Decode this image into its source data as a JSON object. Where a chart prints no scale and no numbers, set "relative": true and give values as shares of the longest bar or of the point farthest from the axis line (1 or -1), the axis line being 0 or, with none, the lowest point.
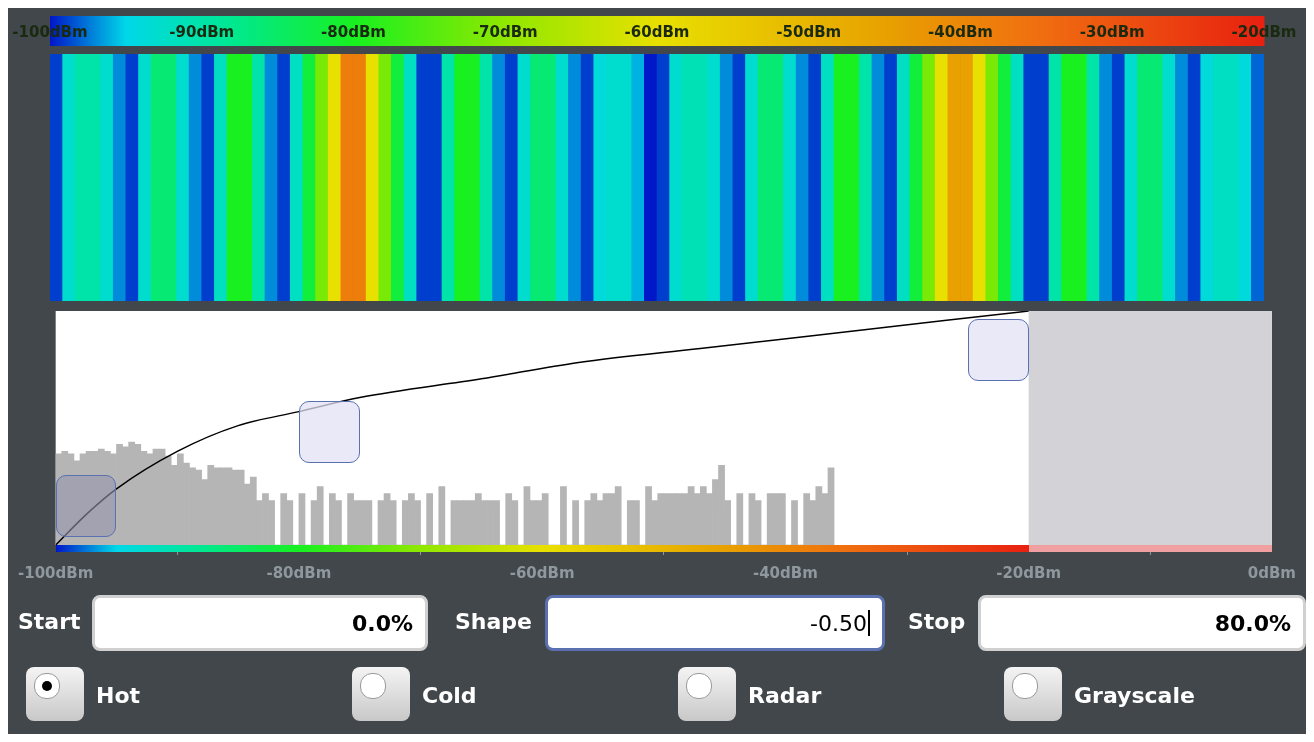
{
  "chart_data": [
    {
      "type": "heatmap",
      "categories": [
        null,
        null,
        null,
        null,
        null,
        null,
        null,
        null,
        null,
        null,
        null,
        null,
        null,
        null,
        null,
        null,
        null,
        null,
        null,
        null,
        null,
        null,
        null,
        null,
        null,
        null,
        null,
        null,
        null,
        null,
        null,
        null,
        null,
        null,
        null,
        null,
        null,
        null,
        null,
        null,
        null,
        null,
        null,
        null,
        null,
        null,
        null,
        null,
        null,
        null,
        null,
        null,
        null,
        null,
        null,
        null,
        null,
        null,
        null,
        null,
        null,
        null,
        null,
        null,
        null,
        null,
        null,
        null,
        null,
        null,
        null,
        null,
        null,
        null,
        null,
        null,
        null,
        null,
        null,
        null,
        null,
        null,
        null,
        null,
        null,
        null,
        null,
        null,
        null,
        null,
        null,
        null,
        null,
        null,
        null,
        null
      ],
      "y_categories": [
        null
      ],
      "cells": [
        [
          -99,
          -93,
          -90,
          -90,
          -93,
          -97,
          -99,
          -93,
          -86,
          -86,
          -93,
          -97,
          -99,
          -92,
          -80,
          -80,
          -90,
          -97,
          -99,
          -92,
          -82,
          -72,
          -60,
          -38,
          -38,
          -60,
          -72,
          -82,
          -92,
          -99,
          -99,
          -90,
          -80,
          -80,
          -90,
          -97,
          -99,
          -93,
          -86,
          -86,
          -93,
          -97,
          -99,
          -94,
          -93,
          -93,
          -96,
          -100,
          -99,
          -93,
          -91,
          -91,
          -93,
          -97,
          -99,
          -93,
          -86,
          -86,
          -93,
          -97,
          -99,
          -92,
          -80,
          -80,
          -90,
          -97,
          -99,
          -92,
          -82,
          -72,
          -60,
          -45,
          -45,
          -60,
          -72,
          -82,
          -92,
          -99,
          -99,
          -90,
          -80,
          -80,
          -90,
          -97,
          -99,
          -93,
          -86,
          -86,
          -93,
          -97,
          -99,
          -94,
          -92,
          -92,
          -94,
          -98
        ]
      ],
      "clim": [
        -100,
        -20
      ],
      "cticks": [
        {
          "value": -100,
          "label": "-100dBm"
        },
        {
          "value": -90,
          "label": "-90dBm"
        },
        {
          "value": -80,
          "label": "-80dBm"
        },
        {
          "value": -70,
          "label": "-70dBm"
        },
        {
          "value": -60,
          "label": "-60dBm"
        },
        {
          "value": -50,
          "label": "-50dBm"
        },
        {
          "value": -40,
          "label": "-40dBm"
        },
        {
          "value": -30,
          "label": "-30dBm"
        },
        {
          "value": -20,
          "label": "-20dBm"
        }
      ]
    },
    {
      "type": "histogram",
      "relative": true,
      "xlim": [
        -100,
        0
      ],
      "xticks": [
        {
          "value": -100,
          "label": "-100dBm"
        },
        {
          "value": -80,
          "label": "-80dBm"
        },
        {
          "value": -60,
          "label": "-60dBm"
        },
        {
          "value": -40,
          "label": "-40dBm"
        },
        {
          "value": -20,
          "label": "-20dBm"
        },
        {
          "value": 0,
          "label": "0dBm"
        }
      ],
      "bands": [
        {
          "axis": "x",
          "from": -20,
          "to": 0,
          "color": "#d3d3d7"
        }
      ],
      "series": [
        {
          "type": "histogram",
          "color": "#b5b5b5",
          "bins": [
            -100,
            -99.5,
            -99,
            -98.5,
            -98,
            -97.5,
            -97,
            -96.5,
            -96,
            -95.5,
            -95,
            -94.5,
            -94,
            -93.5,
            -93,
            -92.5,
            -92,
            -91.5,
            -91,
            -90.5,
            -90,
            -89.5,
            -89,
            -88.5,
            -88,
            -87.5,
            -87,
            -86.5,
            -86,
            -85.5,
            -85,
            -84.5,
            -84,
            -83.5,
            -83,
            -82.5,
            -82,
            -81.5,
            -81,
            -80.5,
            -80,
            -79.5,
            -79,
            -78.5,
            -78,
            -77.5,
            -77,
            -76.5,
            -76,
            -75.5,
            -75,
            -74.5,
            -74,
            -73.5,
            -73,
            -72.5,
            -72,
            -71.5,
            -71,
            -70.5,
            -70,
            -69.5,
            -69,
            -68.5,
            -68,
            -67.5,
            -67,
            -66.5,
            -66,
            -65.5,
            -65,
            -64.5,
            -64,
            -63.5,
            -63,
            -62.5,
            -62,
            -61.5,
            -61,
            -60.5,
            -60,
            -59.5,
            -59,
            -58.5,
            -58,
            -57.5,
            -57,
            -56.5,
            -56,
            -55.5,
            -55,
            -54.5,
            -54,
            -53.5,
            -53,
            -52.5,
            -52,
            -51.5,
            -51,
            -50.5,
            -50,
            -49.5,
            -49,
            -48.5,
            -48,
            -47.5,
            -47,
            -46.5,
            -46,
            -45.5,
            -45,
            -44.5,
            -44,
            -43.5,
            -43,
            -42.5,
            -42,
            -41.5,
            -41,
            -40.5,
            -40,
            -39.5,
            -39,
            -38.5,
            -38,
            -37.5,
            -37,
            -36.5,
            -36
          ],
          "values": [
            0.39,
            0.4,
            0.39,
            0.36,
            0.39,
            0.4,
            0.4,
            0.41,
            0.4,
            0.39,
            0.43,
            0.42,
            0.44,
            0.43,
            0.4,
            0.39,
            0.41,
            0.41,
            0.38,
            0.34,
            0.39,
            0.35,
            0.33,
            0.32,
            0.28,
            0.34,
            0.33,
            0.33,
            0.33,
            0.32,
            0.32,
            0.26,
            0.29,
            0.19,
            0.22,
            0.19,
            0,
            0.22,
            0.19,
            0,
            0.22,
            0,
            0.19,
            0.25,
            0,
            0.22,
            0.19,
            0,
            0.22,
            0.19,
            0.19,
            0.19,
            0,
            0.19,
            0.22,
            0.19,
            0,
            0.19,
            0.22,
            0.19,
            0,
            0.22,
            0,
            0.25,
            0,
            0.19,
            0.19,
            0.19,
            0.19,
            0.22,
            0.19,
            0.19,
            0.19,
            0,
            0.22,
            0.19,
            0,
            0.25,
            0.19,
            0.19,
            0.22,
            0,
            0,
            0.25,
            0,
            0.19,
            0,
            0.19,
            0.22,
            0.19,
            0.22,
            0.22,
            0.25,
            0,
            0.19,
            0.19,
            0,
            0.25,
            0.19,
            0.22,
            0.22,
            0.22,
            0.22,
            0.22,
            0.25,
            0.22,
            0.25,
            0.22,
            0.28,
            0.34,
            0.19,
            0,
            0.22,
            0,
            0.22,
            0.19,
            0,
            0.22,
            0.22,
            0.22,
            0,
            0.19,
            0,
            0.22,
            0.19,
            0.25,
            0.22,
            0.33
          ]
        },
        {
          "type": "line",
          "color": "#000000",
          "x": [
            -100,
            -97.5,
            -95,
            -90,
            -85,
            -80,
            -75,
            -65,
            -57,
            -47,
            -33.5,
            -20
          ],
          "values": [
            0,
            0.13,
            0.24,
            0.4,
            0.51,
            0.57,
            0.63,
            0.71,
            0.78,
            0.84,
            0.92,
            1
          ]
        }
      ]
    },
    {
      "type": "other",
      "annotations": [
        "Start",
        "0.0%",
        "Shape",
        "-0.50",
        "Stop",
        "80.0%",
        "Hot",
        "Cold",
        "Radar",
        "Grayscale"
      ]
    }
  ]
}
